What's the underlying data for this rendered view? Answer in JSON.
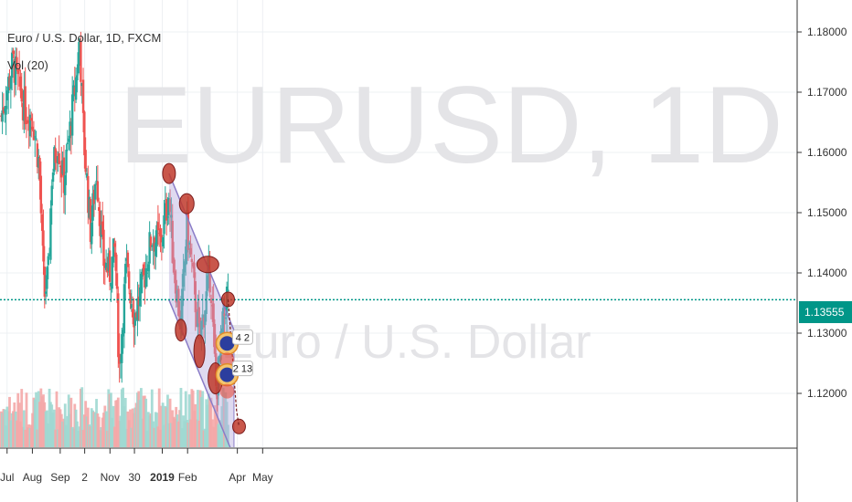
{
  "chart_data": {
    "type": "candlestick",
    "title": "Euro / U.S. Dollar, 1D, FXCM",
    "indicator": "Vol (20)",
    "watermark": {
      "symbol": "EURUSD, 1D",
      "name": "Euro / U.S. Dollar"
    },
    "y_axis": {
      "ylim": [
        1.1135,
        1.1835
      ],
      "ticks": [
        "1.18000",
        "1.17000",
        "1.16000",
        "1.15000",
        "1.14000",
        "1.13000",
        "1.12000"
      ],
      "tick_values": [
        1.18,
        1.17,
        1.16,
        1.15,
        1.14,
        1.13,
        1.12
      ],
      "current_price": "1.13555",
      "current_price_value": 1.13555
    },
    "x_axis": {
      "ticks": [
        "Jul",
        "Aug",
        "Sep",
        "2",
        "Nov",
        "30",
        "2019",
        "Feb",
        "Apr",
        "May"
      ],
      "bold_tick": "2019"
    },
    "colors": {
      "up": "#26a69a",
      "down": "#ef5350",
      "channel_fill": "#b3a8dc",
      "channel_line": "#8a7cc7",
      "marker": "#c0392b",
      "price_line": "#009688"
    },
    "channel": {
      "upper": [
        [
          "2019-01-10",
          1.1565
        ],
        [
          "2019-03-28",
          1.1305
        ]
      ],
      "lower": [
        [
          "2019-01-10",
          1.1355
        ],
        [
          "2019-03-28",
          1.1095
        ]
      ]
    },
    "badges": [
      "4 2",
      "2 13"
    ],
    "grid": true
  }
}
